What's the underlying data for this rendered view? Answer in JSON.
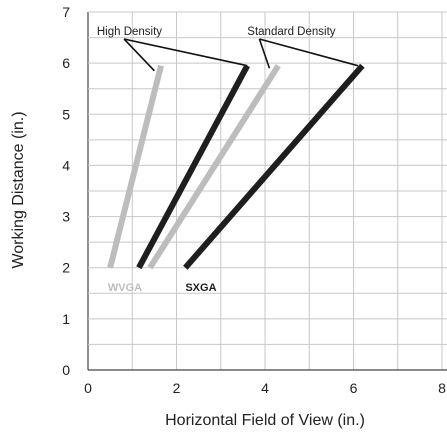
{
  "chart_data": {
    "type": "line",
    "title": "",
    "xlabel": "Horizontal Field of View (in.)",
    "ylabel": "Working Distance (in.)",
    "xlim": [
      0,
      8
    ],
    "ylim": [
      0,
      7
    ],
    "x_ticks": [
      0,
      2,
      4,
      6,
      8
    ],
    "y_ticks": [
      0,
      1,
      2,
      3,
      4,
      5,
      6,
      7
    ],
    "x_tick_labels": [
      "0",
      "2",
      "4",
      "6",
      "8"
    ],
    "y_tick_labels": [
      "0",
      "1",
      "2",
      "3",
      "4",
      "5",
      "6",
      "7"
    ],
    "grid": true,
    "series": [
      {
        "name": "WVGA",
        "density": "high",
        "color": "#bdbdbd",
        "points": [
          [
            0.5,
            2
          ],
          [
            1.65,
            5.95
          ]
        ]
      },
      {
        "name": "SXGA",
        "density": "high",
        "color": "#1e1e1e",
        "points": [
          [
            1.15,
            2
          ],
          [
            3.6,
            5.95
          ]
        ]
      },
      {
        "name": "WVGA",
        "density": "standard",
        "color": "#bdbdbd",
        "points": [
          [
            1.4,
            2
          ],
          [
            4.3,
            5.95
          ]
        ]
      },
      {
        "name": "SXGA",
        "density": "standard",
        "color": "#1e1e1e",
        "points": [
          [
            2.2,
            2
          ],
          [
            6.2,
            5.95
          ]
        ]
      }
    ],
    "series_labels": [
      {
        "text": "WVGA",
        "color": "#bdbdbd",
        "x": 0.45,
        "y": 1.62
      },
      {
        "text": "SXGA",
        "color": "#1e1e1e",
        "x": 2.2,
        "y": 1.62
      }
    ],
    "annotations": [
      {
        "text": "High Density",
        "x": 0.2,
        "y": 6.55,
        "targets": [
          [
            1.5,
            5.85
          ],
          [
            3.6,
            5.95
          ]
        ]
      },
      {
        "text": "Standard Density",
        "x": 3.6,
        "y": 6.55,
        "targets": [
          [
            4.1,
            5.9
          ],
          [
            6.1,
            5.95
          ]
        ]
      }
    ]
  }
}
